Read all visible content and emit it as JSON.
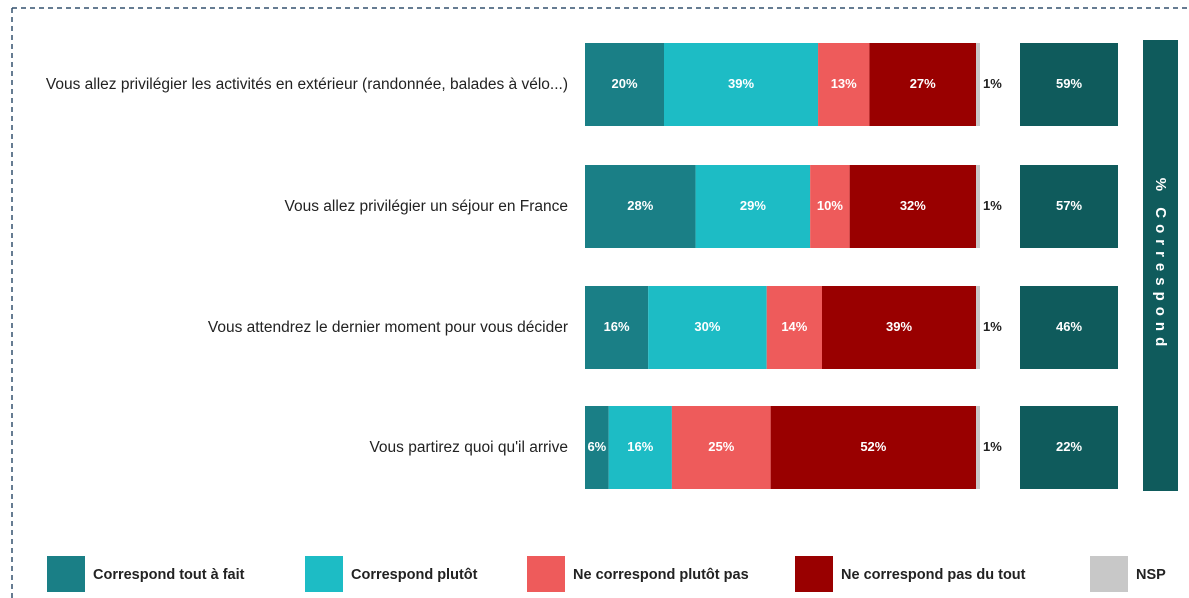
{
  "chart_data": {
    "type": "bar",
    "orientation": "horizontal",
    "stacked": true,
    "xlim": [
      0,
      100
    ],
    "categories": [
      "Vous allez privilégier les activités en extérieur (randonnée, balades à vélo...)",
      "Vous allez privilégier un séjour en France",
      "Vous attendrez le dernier moment pour vous décider",
      "Vous partirez quoi qu'il arrive"
    ],
    "series": [
      {
        "name": "Correspond tout à fait",
        "color": "#1a7f86",
        "values": [
          20,
          28,
          16,
          6
        ],
        "value_labels": [
          "20%",
          "28%",
          "16%",
          "6%"
        ]
      },
      {
        "name": "Correspond plutôt",
        "color": "#1dbcc5",
        "values": [
          39,
          29,
          30,
          16
        ],
        "value_labels": [
          "39%",
          "29%",
          "30%",
          "16%"
        ]
      },
      {
        "name": "Ne correspond plutôt pas",
        "color": "#ee5b5b",
        "values": [
          13,
          10,
          14,
          25
        ],
        "value_labels": [
          "13%",
          "10%",
          "14%",
          "25%"
        ]
      },
      {
        "name": "Ne correspond pas du tout",
        "color": "#990000",
        "values": [
          27,
          32,
          39,
          52
        ],
        "value_labels": [
          "27%",
          "32%",
          "39%",
          "52%"
        ]
      },
      {
        "name": "NSP",
        "color": "#c8c8c8",
        "values": [
          1,
          1,
          1,
          1
        ],
        "value_labels": [
          "1%",
          "1%",
          "1%",
          "1%"
        ]
      }
    ],
    "totals": {
      "label": "% Correspond",
      "color": "#0f5b5c",
      "values": [
        59,
        57,
        46,
        22
      ],
      "value_labels": [
        "59%",
        "57%",
        "46%",
        "22%"
      ]
    }
  }
}
